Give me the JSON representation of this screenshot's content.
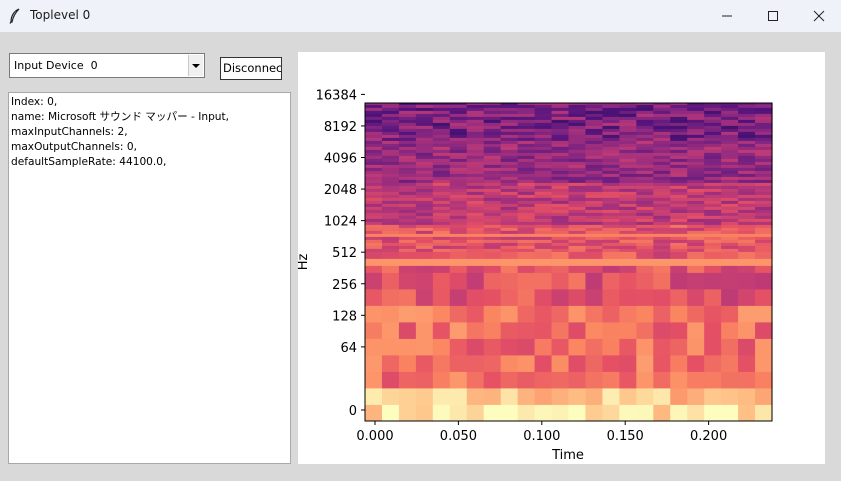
{
  "window": {
    "title": "Toplevel 0"
  },
  "device_select": {
    "value": "Input Device  0"
  },
  "disconnect_button": {
    "label": "Disconnec"
  },
  "device_info": [
    "Index: 0,",
    "name: Microsoft サウンド マッパー - Input,",
    "maxInputChannels: 2,",
    "maxOutputChannels: 0,",
    "defaultSampleRate: 44100.0,"
  ],
  "chart_data": {
    "type": "heatmap",
    "colormap": "magma",
    "xlabel": "Time",
    "ylabel": "Hz",
    "x_ticks": [
      "0.000",
      "0.050",
      "0.100",
      "0.150",
      "0.200"
    ],
    "x_tick_values": [
      0,
      0.05,
      0.1,
      0.15,
      0.2
    ],
    "xlim": [
      -0.006,
      0.238
    ],
    "y_scale": "symlog",
    "y_ticks": [
      "0",
      "64",
      "128",
      "256",
      "512",
      "1024",
      "2048",
      "4096",
      "8192",
      "16384"
    ],
    "y_tick_values": [
      0,
      64,
      128,
      256,
      512,
      1024,
      2048,
      4096,
      8192,
      16384
    ],
    "time_frames": 24,
    "grid": false
  }
}
